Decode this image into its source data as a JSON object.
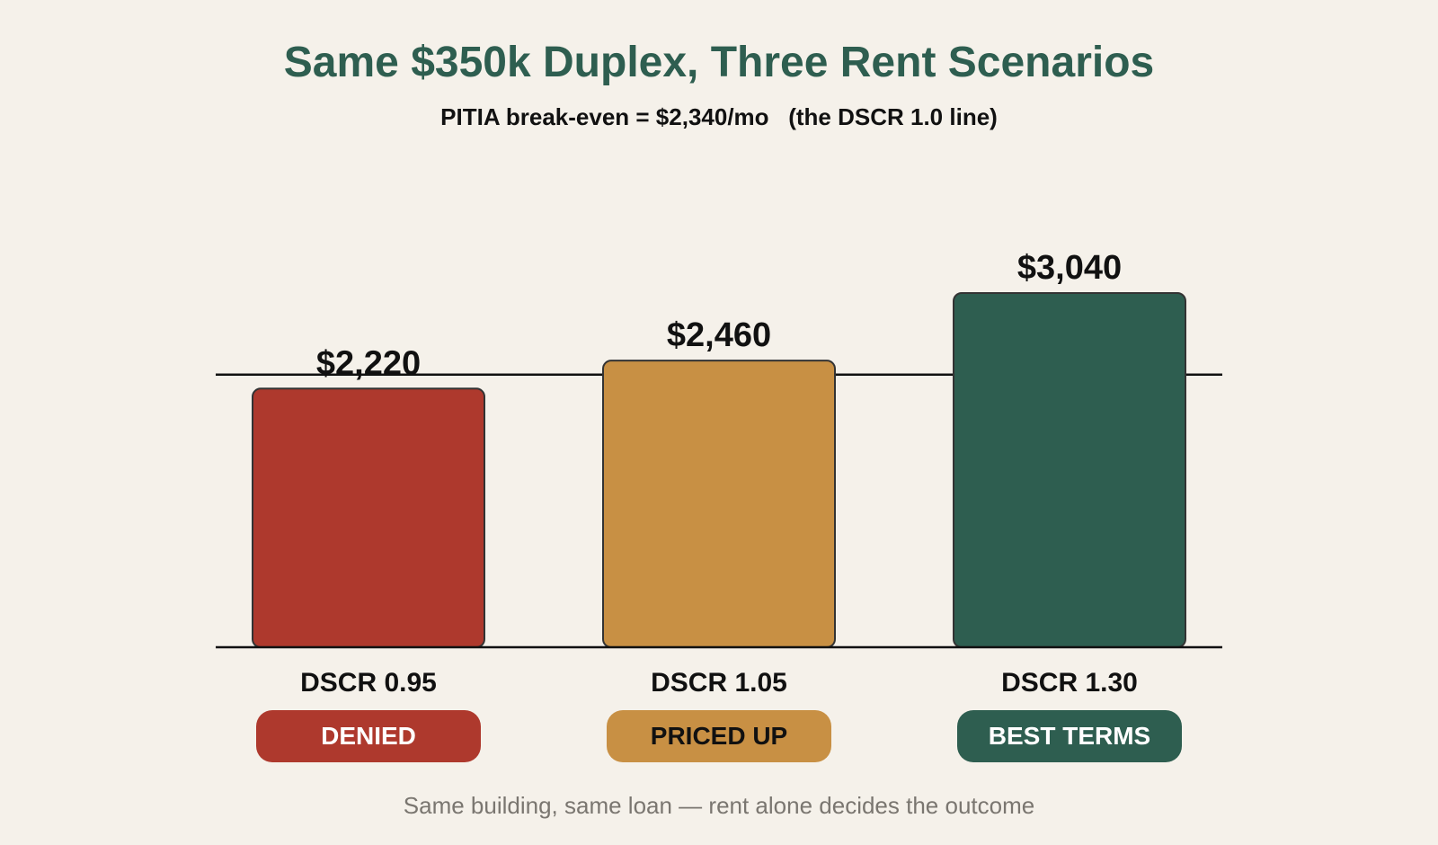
{
  "title": "Same $350k Duplex, Three Rent Scenarios",
  "subtitle": "PITIA break-even = $2,340/mo   (the DSCR 1.0 line)",
  "footer": "Same building, same loan — rent alone decides the outcome",
  "chart_data": {
    "type": "bar",
    "title": "Same $350k Duplex, Three Rent Scenarios",
    "subtitle": "PITIA break-even = $2,340/mo   (the DSCR 1.0 line)",
    "categories": [
      "DSCR 0.95",
      "DSCR 1.05",
      "DSCR 1.30"
    ],
    "values": [
      2220,
      2460,
      3040
    ],
    "value_labels": [
      "$2,220",
      "$2,460",
      "$3,040"
    ],
    "reference_line": 2340,
    "colors": [
      "#ae392d",
      "#c89044",
      "#2e5e50"
    ],
    "outcomes": [
      {
        "label": "DENIED",
        "bg": "#ae392d",
        "fg": "#ffffff"
      },
      {
        "label": "PRICED UP",
        "bg": "#c89044",
        "fg": "#111111"
      },
      {
        "label": "BEST TERMS",
        "bg": "#2e5e50",
        "fg": "#ffffff"
      }
    ],
    "xlabel": "",
    "ylabel": "",
    "grid": false,
    "legend": "none"
  }
}
